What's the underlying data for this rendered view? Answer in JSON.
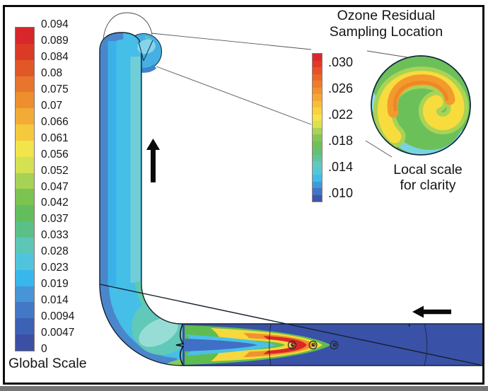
{
  "global_scale": {
    "title": "Global Scale",
    "tick_labels": [
      "0.094",
      "0.089",
      "0.084",
      "0.08",
      "0.075",
      "0.07",
      "0.066",
      "0.061",
      "0.056",
      "0.052",
      "0.047",
      "0.042",
      "0.037",
      "0.033",
      "0.028",
      "0.023",
      "0.019",
      "0.014",
      "0.0094",
      "0.0047",
      "0"
    ],
    "band_colors": [
      "#d7272b",
      "#db3a27",
      "#e15728",
      "#e8752e",
      "#ed8f2f",
      "#f2ab36",
      "#f5c93e",
      "#f2e54c",
      "#d3e152",
      "#a6d256",
      "#7cc352",
      "#63bd5f",
      "#5ac087",
      "#5ec6b7",
      "#50c4dd",
      "#39b7ec",
      "#4795d6",
      "#4478c5",
      "#3d61b5",
      "#3b4fa5"
    ]
  },
  "local_scale": {
    "tick_labels": [
      ".030",
      ".026",
      ".022",
      ".018",
      ".014",
      ".010"
    ],
    "band_colors": [
      "#d8292c",
      "#e23a27",
      "#e75127",
      "#ea672a",
      "#ee7c2c",
      "#f1912f",
      "#f4a834",
      "#f6bf3a",
      "#f7d23d",
      "#f3e447",
      "#d8e24e",
      "#aad254",
      "#84c754",
      "#6dc156",
      "#64c170",
      "#5fc49c",
      "#60c9c1",
      "#52c7da",
      "#3fbcea",
      "#3e9bda",
      "#4175c4",
      "#3b57ad"
    ]
  },
  "inset": {
    "title_line1": "Ozone Residual",
    "title_line2": "Sampling Location",
    "caption_line1": "Local scale",
    "caption_line2": "for clarity"
  },
  "icons": {
    "up_arrow": "upward-flow-arrow",
    "left_arrow": "leftward-flow-arrow",
    "injector_ports": "circle-port-markers"
  },
  "colors": {
    "inlet_pipe_blue": "#3a51a8",
    "riser_cyan": "#45bee8",
    "riser_outer_band_blue": "#4a86cc",
    "riser_inner_band_teal": "#70cfd6",
    "elbow_teal": "#62c9b6",
    "jet_red": "#db2827",
    "jet_orange": "#f0922d",
    "jet_yellow": "#f6d93c",
    "jet_green": "#5fbc50",
    "sphere_cyan": "#47b0e2",
    "inset_base_green": "#6cc05a",
    "inset_swirl_yellow": "#f8dc3e",
    "inset_arch_orange": "#f39a2c"
  },
  "chart_data": {
    "type": "heatmap",
    "title": "Ozone Residual Sampling Location",
    "global_scale": {
      "label": "Global Scale",
      "ticks": [
        0.094,
        0.089,
        0.084,
        0.08,
        0.075,
        0.07,
        0.066,
        0.061,
        0.056,
        0.052,
        0.047,
        0.042,
        0.037,
        0.033,
        0.028,
        0.023,
        0.019,
        0.014,
        0.0094,
        0.0047,
        0
      ],
      "range": [
        0,
        0.094
      ],
      "orientation": "vertical",
      "colormap": "rainbow (red=high, blue=low)"
    },
    "local_scale": {
      "label": "Local scale for clarity",
      "ticks": [
        0.03,
        0.026,
        0.022,
        0.018,
        0.014,
        0.01
      ],
      "range": [
        0.01,
        0.03
      ],
      "orientation": "vertical",
      "colormap": "rainbow (red=high, blue=low)"
    },
    "annotations": [
      "upward flow arrow in riser pipe",
      "leftward flow arrow at inlet pipe",
      "leader lines from sampling sphere to inset detail"
    ],
    "features": [
      "L-shaped pipe contour plot: horizontal inlet (low/blue) with high-concentration jet (red core sheath) after injector ports, vertical riser mostly cyan/low values",
      "circular cross-section inset showing yellow-orange swirl on green background"
    ]
  }
}
